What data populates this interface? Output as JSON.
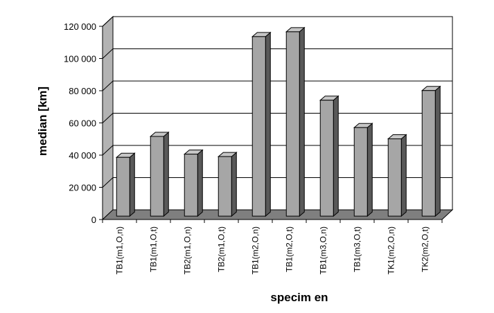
{
  "chart_data": {
    "type": "bar",
    "title": "",
    "xlabel": "specim en",
    "ylabel": "median [km]",
    "ylim": [
      0,
      120000
    ],
    "ytick_values": [
      0,
      20000,
      40000,
      60000,
      80000,
      100000,
      120000
    ],
    "ytick_labels": [
      "0",
      "20 000",
      "40 000",
      "60 000",
      "80 000",
      "100 000",
      "120 000"
    ],
    "grid": true,
    "legend": "none",
    "style": "3d-bars",
    "categories": [
      "TB1(m1,O,n)",
      "TB1(m1,O,t)",
      "TB2(m1,O,n)",
      "TB2(m1,O,t)",
      "TB1(m2,O,n)",
      "TB1(m2,O,t)",
      "TB1(m3,O,n)",
      "TB1(m3,O,t)",
      "TK1(m2,O,n)",
      "TK2(m2,O,t)"
    ],
    "values": [
      36500,
      49500,
      38500,
      37000,
      111500,
      114500,
      72000,
      55000,
      48000,
      78000
    ],
    "colors": {
      "bar_front": "#a6a6a6",
      "bar_side": "#595959",
      "bar_top": "#c6c6c6",
      "floor": "#7f7f7f",
      "wall_side": "#b3b3b3",
      "wall_back": "#ffffff",
      "gridline": "#000000"
    }
  }
}
